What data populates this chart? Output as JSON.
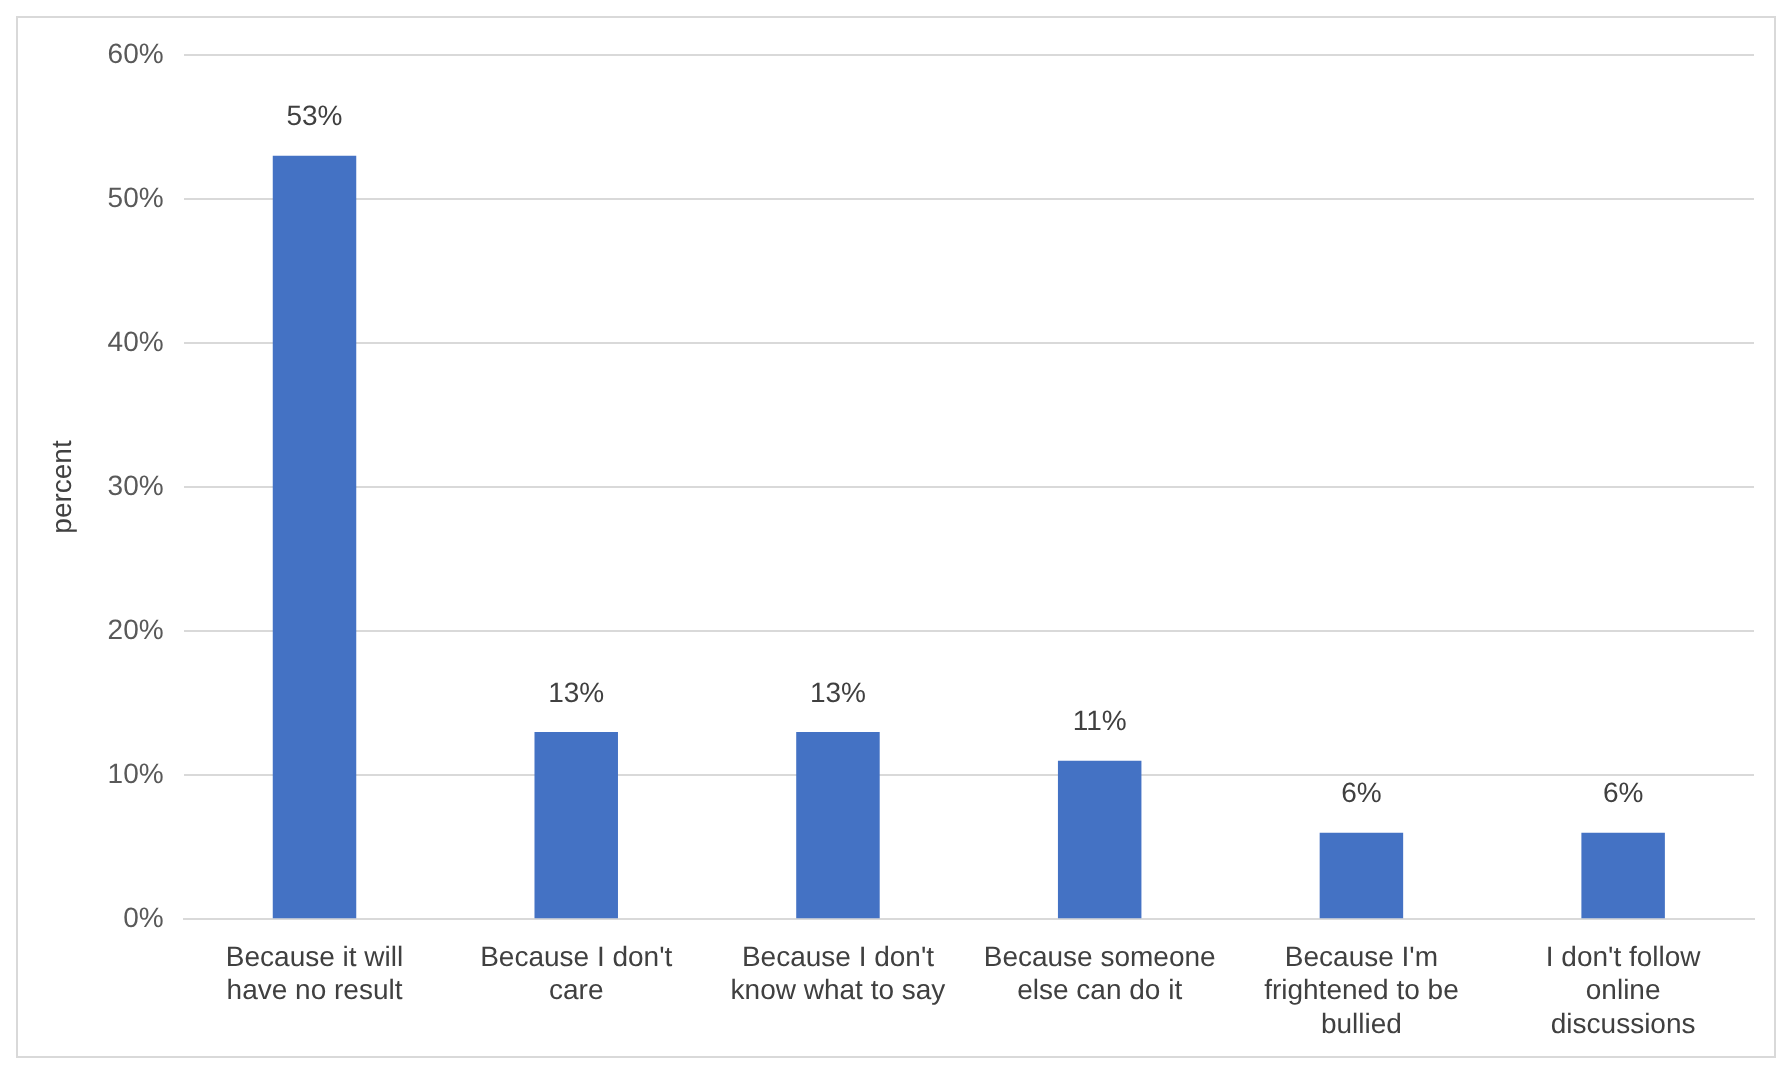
{
  "chart_data": {
    "type": "bar",
    "ylabel": "percent",
    "categories": [
      "Because it will have no result",
      "Because I don't care",
      "Because I don't know what to say",
      "Because someone else can do it",
      "Because I'm frightened to be bullied",
      "I don't follow online discussions"
    ],
    "values": [
      53,
      13,
      13,
      11,
      6,
      6
    ],
    "value_labels": [
      "53%",
      "13%",
      "13%",
      "11%",
      "6%",
      "6%"
    ],
    "color": "#4472c4",
    "ylim": [
      0,
      60
    ],
    "yticks": [
      {
        "value": 0,
        "label": "0%"
      },
      {
        "value": 10,
        "label": "10%"
      },
      {
        "value": 20,
        "label": "20%"
      },
      {
        "value": 30,
        "label": "30%"
      },
      {
        "value": 40,
        "label": "40%"
      },
      {
        "value": 50,
        "label": "50%"
      },
      {
        "value": 60,
        "label": "60%"
      }
    ],
    "grid": "y",
    "legend": false
  }
}
